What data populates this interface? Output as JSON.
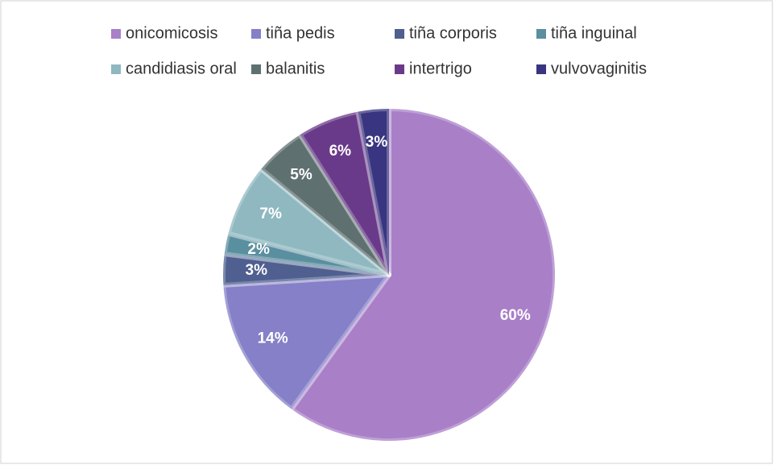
{
  "chart_data": {
    "type": "pie",
    "categories": [
      "onicomicosis",
      "tiña pedis",
      "tiña corporis",
      "tiña inguinal",
      "candidiasis oral",
      "balanitis",
      "intertrigo",
      "vulvovaginitis"
    ],
    "values": [
      60,
      14,
      3,
      2,
      7,
      5,
      6,
      3
    ],
    "value_labels": [
      "60%",
      "14%",
      "3%",
      "2%",
      "7%",
      "5%",
      "6%",
      "3%"
    ],
    "colors": [
      "#a97fc8",
      "#8580c8",
      "#4f5f8f",
      "#5a8fa0",
      "#8fb8c0",
      "#5f7070",
      "#6a3a8a",
      "#3a3580"
    ],
    "legend": "top"
  }
}
